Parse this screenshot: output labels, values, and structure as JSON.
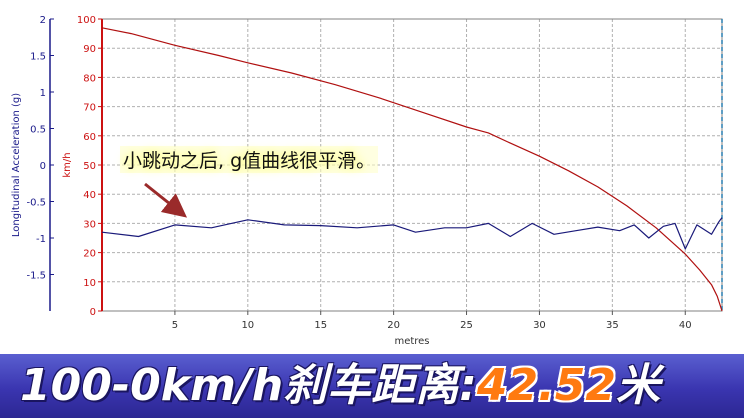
{
  "chart_data": {
    "type": "line",
    "xlabel": "metres",
    "x_ticks": [
      5,
      10,
      15,
      20,
      25,
      30,
      35,
      40
    ],
    "xlim": [
      0,
      42.52
    ],
    "grid": true,
    "left_axis": {
      "label": "Longitudinal Acceleration (g)",
      "ylim": [
        -2,
        2
      ],
      "ticks": [
        2,
        1.5,
        1,
        0.5,
        0,
        -0.5,
        -1,
        -1.5
      ]
    },
    "right_axis": {
      "label": "km/h",
      "ylim": [
        0,
        100
      ],
      "ticks": [
        100,
        90,
        80,
        70,
        60,
        50,
        40,
        30,
        20,
        10,
        0
      ]
    },
    "series": [
      {
        "axis": "right_axis",
        "color": "#b01010",
        "x": [
          0,
          2,
          5,
          8,
          10,
          13,
          16,
          19,
          22,
          25,
          26.5,
          28,
          30,
          32,
          34,
          36,
          38,
          39,
          40,
          41,
          41.8,
          42.2,
          42.52
        ],
        "y": [
          97,
          95,
          91,
          87.5,
          85,
          81.5,
          77.5,
          73,
          68,
          63,
          61,
          57.5,
          53,
          48,
          42.5,
          36,
          28.5,
          24,
          19.5,
          14,
          9,
          5,
          0
        ]
      },
      {
        "axis": "left_axis",
        "color": "#1a1a7a",
        "x": [
          0,
          2.5,
          5,
          7.5,
          10,
          12.5,
          15,
          17.5,
          20,
          21.5,
          23.5,
          25,
          26.5,
          28,
          29.5,
          31,
          32.5,
          34,
          35.5,
          36.5,
          37.5,
          38.5,
          39.3,
          40,
          40.8,
          41.8,
          42.3,
          42.52
        ],
        "y": [
          -0.92,
          -0.98,
          -0.82,
          -0.86,
          -0.75,
          -0.82,
          -0.83,
          -0.86,
          -0.82,
          -0.92,
          -0.86,
          -0.86,
          -0.8,
          -0.98,
          -0.8,
          -0.95,
          -0.9,
          -0.85,
          -0.9,
          -0.82,
          -1.0,
          -0.84,
          -0.8,
          -1.15,
          -0.82,
          -0.95,
          -0.78,
          -0.72
        ]
      }
    ]
  },
  "annotation": {
    "text": "小跳动之后, g值曲线很平滑。"
  },
  "banner": {
    "label": "100-0km/h刹车距离:",
    "value": "42.52",
    "unit": "米"
  },
  "colors": {
    "arrow": "#9a2a2a",
    "left_axis": "#1a1a8a",
    "right_axis": "#cc1111",
    "grid": "#b0b0b0",
    "cursor": "#2a7fb0"
  }
}
